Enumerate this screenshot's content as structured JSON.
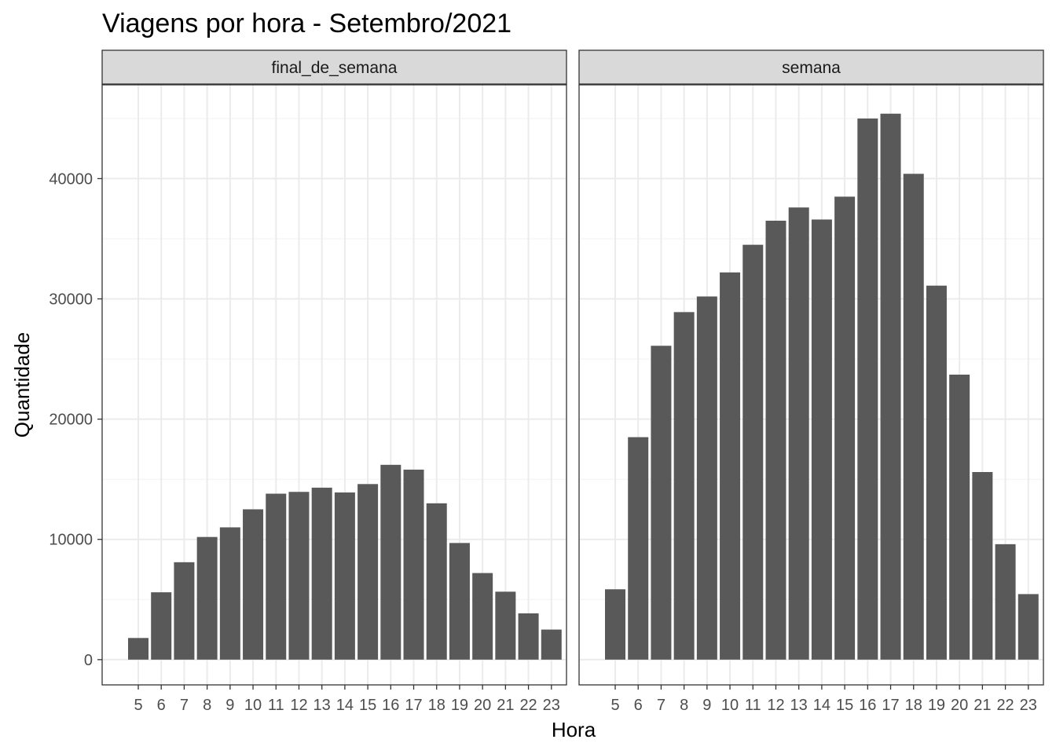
{
  "chart_data": {
    "type": "bar",
    "title": "Viagens por hora - Setembro/2021",
    "xlabel": "Hora",
    "ylabel": "Quantidade",
    "categories": [
      "5",
      "6",
      "7",
      "8",
      "9",
      "10",
      "11",
      "12",
      "13",
      "14",
      "15",
      "16",
      "17",
      "18",
      "19",
      "20",
      "21",
      "22",
      "23"
    ],
    "ylim": [
      -2100,
      47800
    ],
    "yticks": [
      0,
      10000,
      20000,
      30000,
      40000
    ],
    "ytick_labels": [
      "0",
      "10000",
      "20000",
      "30000",
      "40000"
    ],
    "grid": true,
    "facets": [
      {
        "name": "final_de_semana",
        "values": [
          1800,
          5600,
          8100,
          10200,
          11000,
          12500,
          13800,
          13950,
          14300,
          13900,
          14600,
          16200,
          15800,
          13000,
          9700,
          7200,
          5650,
          3850,
          2500
        ]
      },
      {
        "name": "semana",
        "values": [
          5850,
          18500,
          26100,
          28900,
          30200,
          32200,
          34500,
          36500,
          37600,
          36600,
          38500,
          45000,
          45400,
          40400,
          31100,
          23700,
          15600,
          9600,
          5450
        ]
      }
    ],
    "colors": {
      "bar": "#595959",
      "strip_fill": "#d9d9d9",
      "panel_border": "#333333",
      "grid_major": "#ebebeb",
      "grid_minor": "#f2f2f2"
    }
  }
}
